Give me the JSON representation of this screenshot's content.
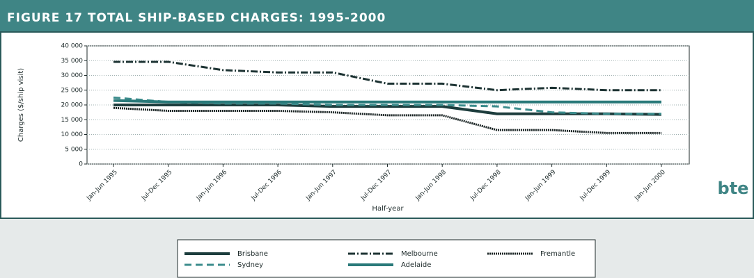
{
  "chart_data": {
    "type": "line",
    "title": "FIGURE 17   TOTAL SHIP-BASED CHARGES: 1995-2000",
    "y_label": "Charges ($/ship visit)",
    "x_label": "Half-year",
    "logo": "bte",
    "categories": [
      "Jan-Jun 1995",
      "Jul-Dec 1995",
      "Jan-Jun 1996",
      "Jul-Dec 1996",
      "Jan-Jun 1997",
      "Jul-Dec 1997",
      "Jan-Jun 1998",
      "Jul-Dec 1998",
      "Jan-Jun 1999",
      "Jul-Dec 1999",
      "Jan-Jun 2000"
    ],
    "ylim": [
      0,
      40000
    ],
    "yticks": [
      0,
      {
        "value": 5000,
        "label": "5 000"
      },
      {
        "value": 10000,
        "label": "10 000"
      },
      {
        "value": 15000,
        "label": "15 000"
      },
      {
        "value": 20000,
        "label": "20 000"
      },
      {
        "value": 25000,
        "label": "25 000"
      },
      {
        "value": 30000,
        "label": "30 000"
      },
      {
        "value": 35000,
        "label": "35 000"
      },
      {
        "value": 40000,
        "label": "40 000"
      }
    ],
    "grid": true,
    "series": [
      {
        "name": "Brisbane",
        "color": "#1d3d3d",
        "style": "solid",
        "values": [
          20000,
          20000,
          20000,
          20000,
          19500,
          19500,
          19500,
          17000,
          17000,
          17000,
          16800
        ]
      },
      {
        "name": "Melbourne",
        "color": "#1d3333",
        "style": "dashdot",
        "values": [
          34600,
          34600,
          31800,
          31000,
          31000,
          27200,
          27200,
          25000,
          25800,
          25000,
          25000
        ]
      },
      {
        "name": "Fremantle",
        "color": "#1a2424",
        "style": "dotted",
        "values": [
          19000,
          18000,
          18000,
          18000,
          17500,
          16500,
          16500,
          11500,
          11500,
          10500,
          10500
        ]
      },
      {
        "name": "Sydney",
        "color": "#3b8c8c",
        "style": "dashed",
        "values": [
          22500,
          21000,
          20500,
          20500,
          20000,
          20000,
          20000,
          19500,
          17500,
          17000,
          17000
        ]
      },
      {
        "name": "Adelaide",
        "color": "#2a7a7a",
        "style": "solid",
        "values": [
          21500,
          21000,
          21000,
          21000,
          21000,
          21000,
          21000,
          21000,
          21000,
          21000,
          21000
        ]
      }
    ]
  }
}
